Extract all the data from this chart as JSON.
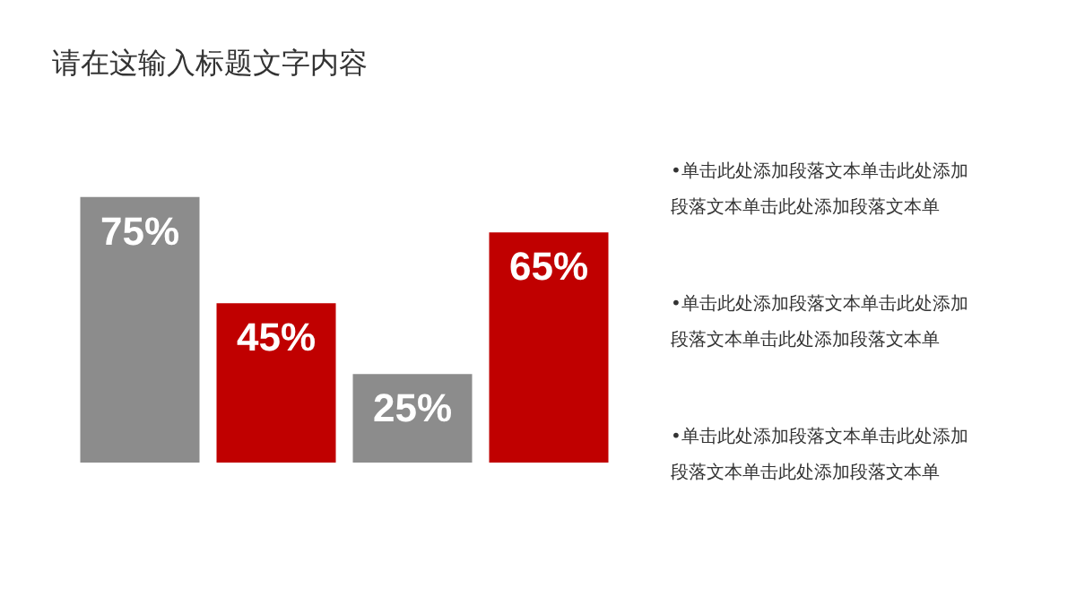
{
  "chart_data": {
    "type": "bar",
    "title": "请在这输入标题文字内容",
    "categories": [
      null,
      null,
      null,
      null
    ],
    "values": [
      75,
      45,
      25,
      65
    ],
    "colors": [
      "#8c8c8c",
      "#c00000",
      "#8c8c8c",
      "#c00000"
    ],
    "value_labels": [
      "75%",
      "45%",
      "25%",
      "65%"
    ],
    "annotations": [
      "•单击此处添加段落文本单击此处添加段落文本单击此处添加段落文本单",
      "•单击此处添加段落文本单击此处添加段落文本单击此处添加段落文本单",
      "•单击此处添加段落文本单击此处添加段落文本单击此处添加段落文本单"
    ]
  }
}
